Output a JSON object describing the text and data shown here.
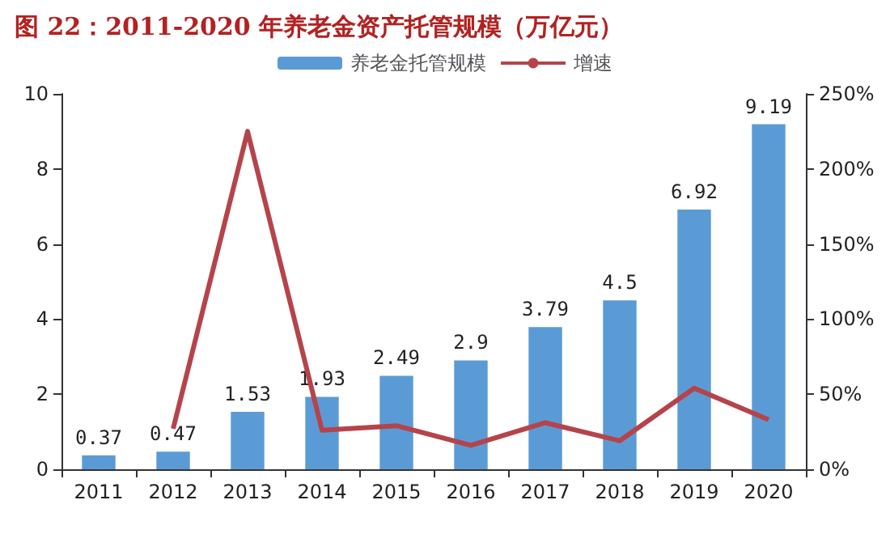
{
  "chart_data": {
    "type": "bar",
    "title": "图 22：2011-2020 年养老金资产托管规模（万亿元）",
    "categories": [
      "2011",
      "2012",
      "2013",
      "2014",
      "2015",
      "2016",
      "2017",
      "2018",
      "2019",
      "2020"
    ],
    "series": [
      {
        "name": "养老金托管规模",
        "color": "#5b9bd5",
        "values": [
          0.37,
          0.47,
          1.53,
          1.93,
          2.49,
          2.9,
          3.79,
          4.5,
          6.92,
          9.19
        ],
        "data_labels": true
      },
      {
        "name": "增速",
        "type": "line",
        "axis": "y2",
        "color": "#b5444a",
        "values": [
          null,
          27,
          225,
          26,
          29,
          16,
          31,
          19,
          54,
          33
        ]
      }
    ],
    "ylim": [
      0,
      10
    ],
    "yticks": [
      0,
      2,
      4,
      6,
      8,
      10
    ],
    "y2lim": [
      0,
      250
    ],
    "y2ticks": [
      {
        "value": 0,
        "label": "0%"
      },
      {
        "value": 50,
        "label": "50%"
      },
      {
        "value": 100,
        "label": "100%"
      },
      {
        "value": 150,
        "label": "150%"
      },
      {
        "value": 200,
        "label": "200%"
      },
      {
        "value": 250,
        "label": "250%"
      }
    ],
    "legend": "top",
    "grid": false,
    "marker": "none"
  }
}
